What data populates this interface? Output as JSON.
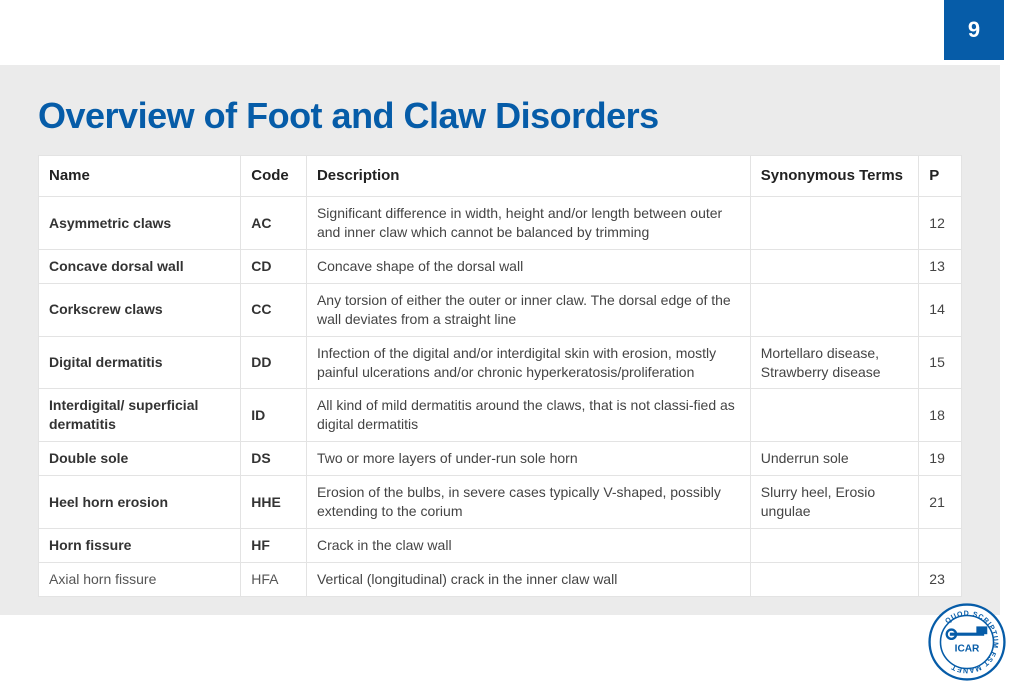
{
  "page_number": "9",
  "title": "Overview of Foot and Claw Disorders",
  "columns": [
    "Name",
    "Code",
    "Description",
    "Synonymous Terms",
    "P"
  ],
  "rows": [
    {
      "name": "Asymmetric claws",
      "code": "AC",
      "desc": "Significant difference in width, height and/or length between outer and inner claw which cannot be balanced by trimming",
      "syn": "",
      "p": "12",
      "sub": false
    },
    {
      "name": "Concave dorsal wall",
      "code": "CD",
      "desc": "Concave shape of the dorsal wall",
      "syn": "",
      "p": "13",
      "sub": false
    },
    {
      "name": "Corkscrew claws",
      "code": "CC",
      "desc": "Any torsion of either the outer or inner claw. The dorsal edge of the wall deviates from a straight line",
      "syn": "",
      "p": "14",
      "sub": false
    },
    {
      "name": "Digital dermatitis",
      "code": "DD",
      "desc": "Infection of the digital and/or interdigital skin with erosion, mostly painful ulcerations and/or chronic hyperkeratosis/proliferation",
      "syn": "Mortellaro disease, Strawberry disease",
      "p": "15",
      "sub": false
    },
    {
      "name": "Interdigital/ superficial dermatitis",
      "code": "ID",
      "desc": "All kind of mild dermatitis around the claws, that is not classi-fied as digital dermatitis",
      "syn": "",
      "p": "18",
      "sub": false
    },
    {
      "name": "Double sole",
      "code": "DS",
      "desc": "Two or more layers of under-run sole horn",
      "syn": "Underrun sole",
      "p": "19",
      "sub": false
    },
    {
      "name": "Heel horn erosion",
      "code": "HHE",
      "desc": "Erosion of the bulbs, in severe cases typically V-shaped, possibly extending to the corium",
      "syn": "Slurry heel, Erosio ungulae",
      "p": "21",
      "sub": false
    },
    {
      "name": "Horn fissure",
      "code": "HF",
      "desc": "Crack in the claw wall",
      "syn": "",
      "p": "",
      "sub": false
    },
    {
      "name": "Axial horn fissure",
      "code": "HFA",
      "desc": "Vertical (longitudinal) crack in the inner claw wall",
      "syn": "",
      "p": "23",
      "sub": true
    }
  ],
  "seal": {
    "outer_color": "#065ca8",
    "inner_text": "ICAR",
    "ring_text": "QUOD SCRIPTUM EST MANET"
  }
}
